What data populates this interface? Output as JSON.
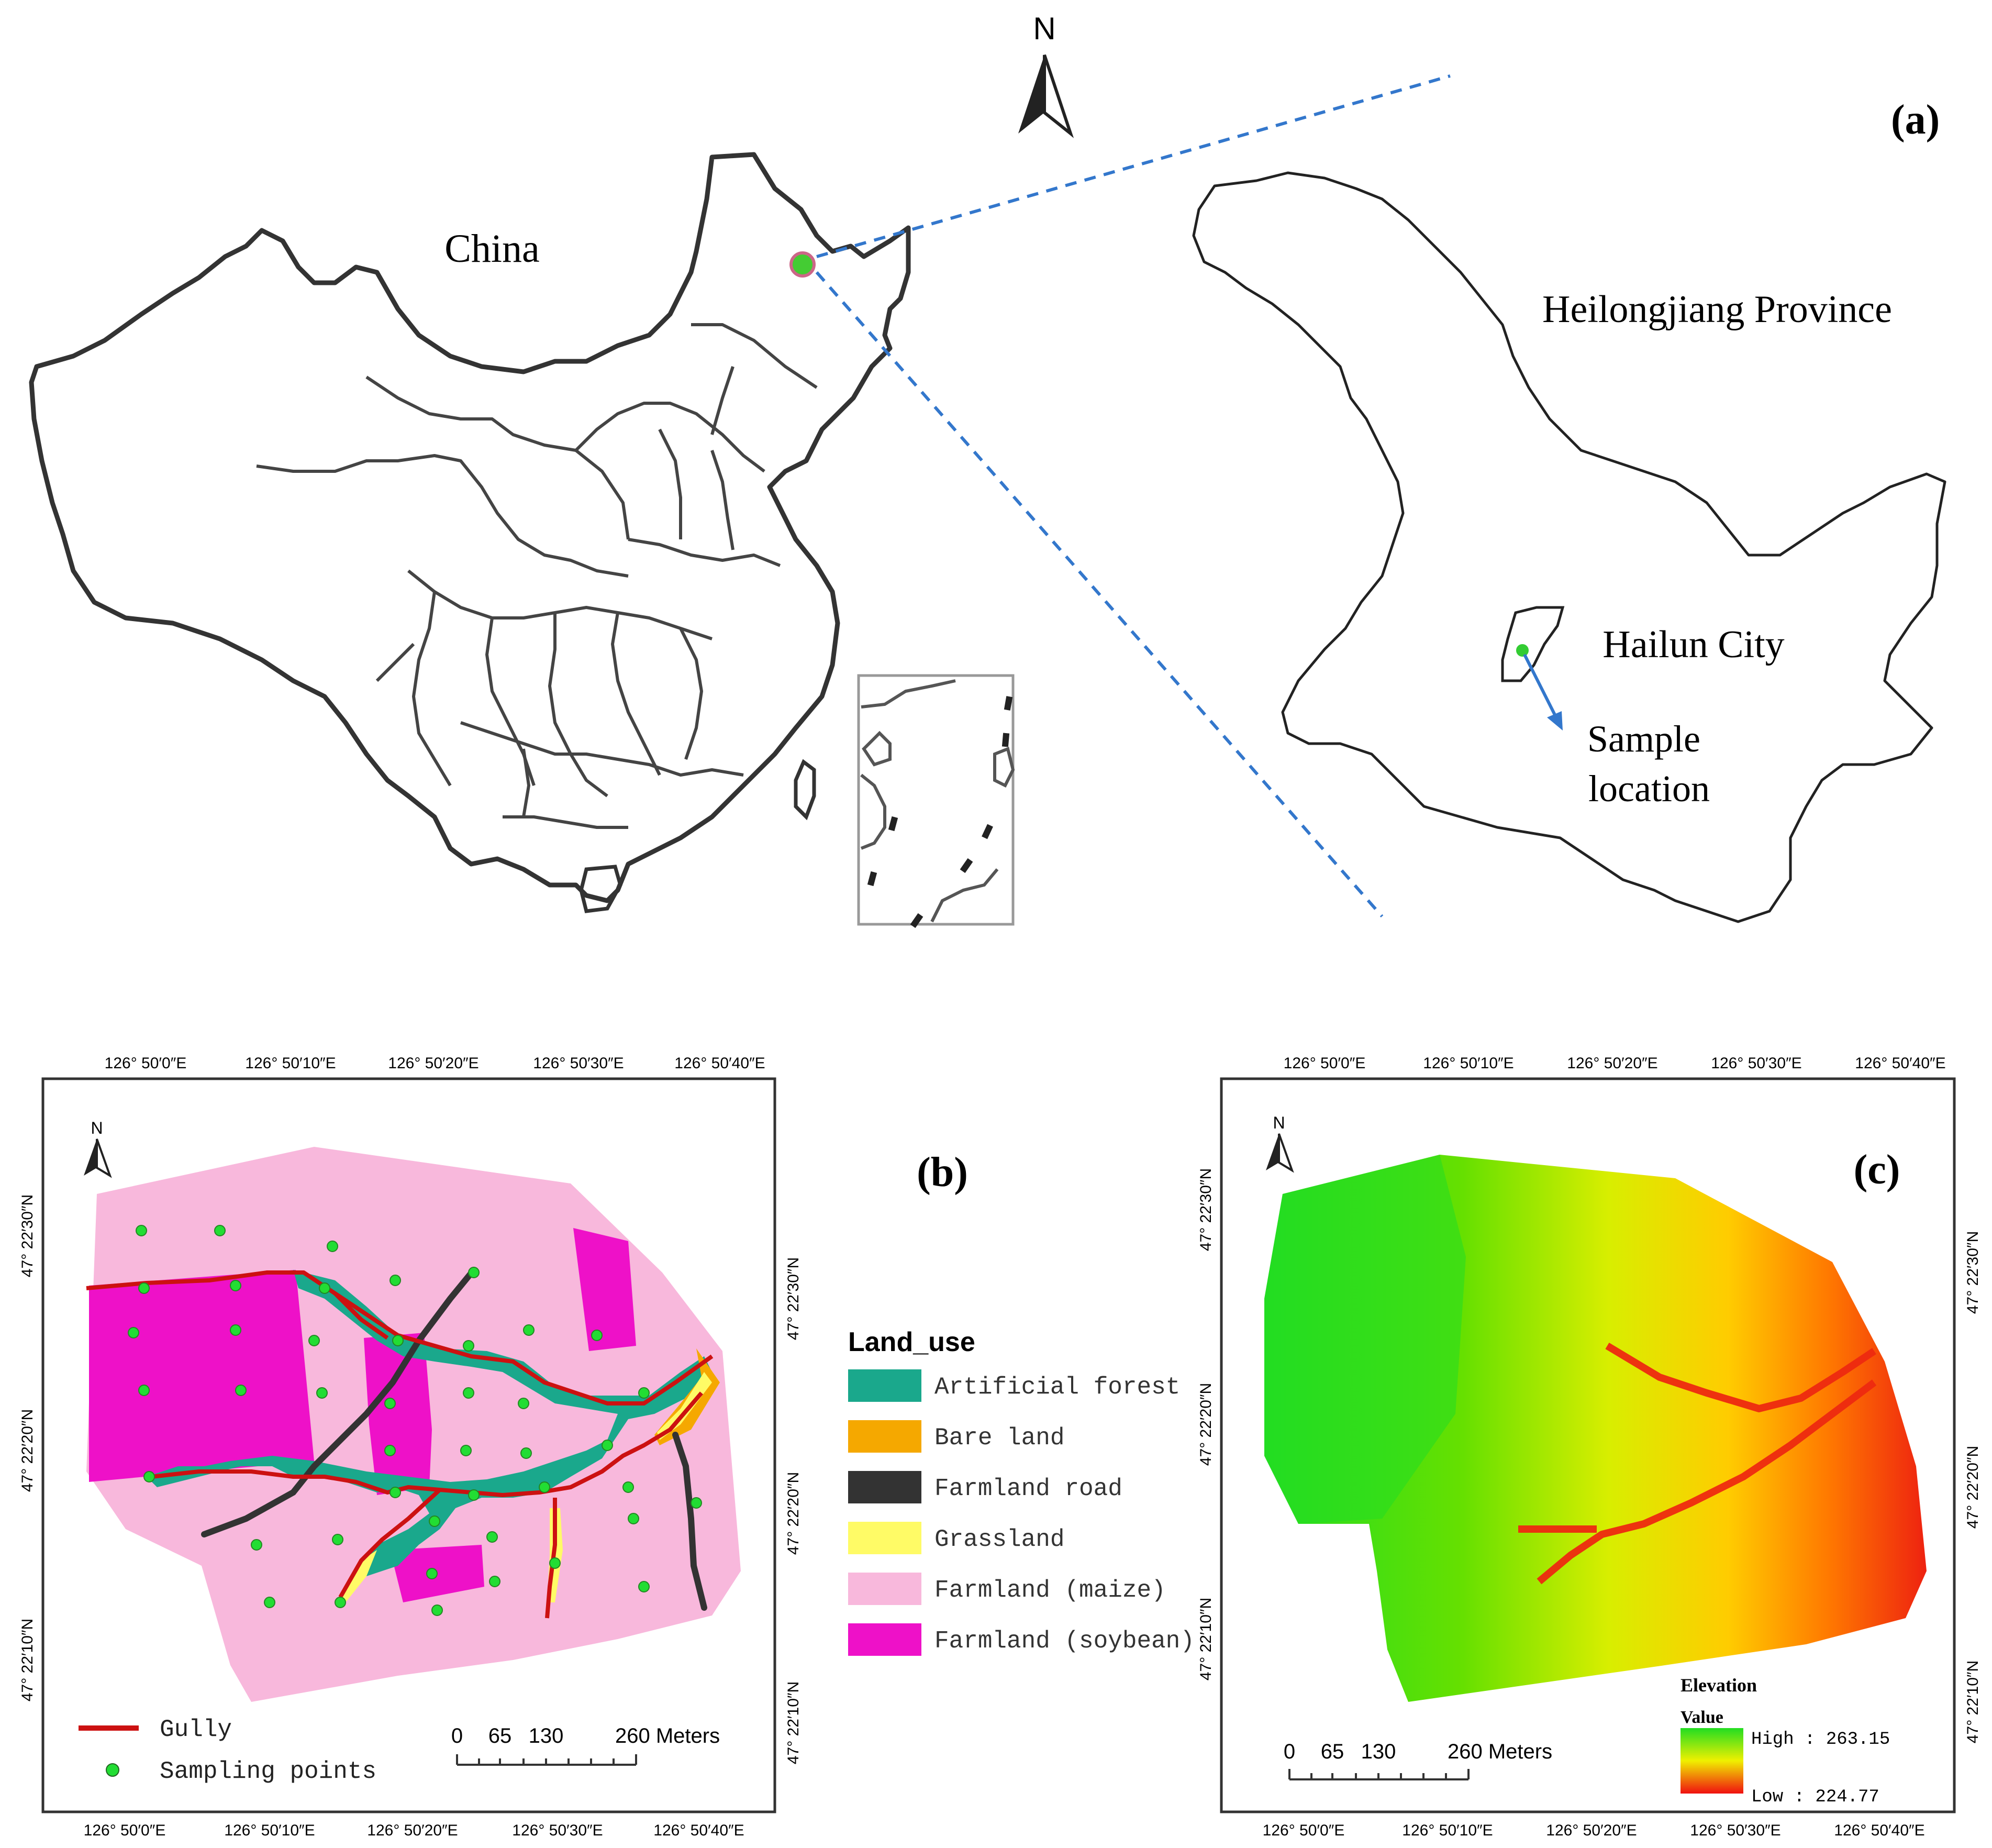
{
  "panel_a": {
    "label": "(a)",
    "north": "N",
    "china_label": "China",
    "province_label": "Heilongjiang Province",
    "city_label": "Hailun City",
    "sample_label_line1": "Sample",
    "sample_label_line2": "location"
  },
  "panel_b": {
    "label": "(b)",
    "north": "N",
    "top_ticks": [
      "126° 50′0″E",
      "126° 50′10″E",
      "126° 50′20″E",
      "126° 50′30″E",
      "126° 50′40″E"
    ],
    "bottom_ticks": [
      "126° 50′0″E",
      "126° 50′10″E",
      "126° 50′20″E",
      "126° 50′30″E",
      "126° 50′40″E"
    ],
    "left_ticks": [
      "47° 22′30″N",
      "47° 22′20″N",
      "47° 22′10″N"
    ],
    "right_ticks": [
      "47° 22′30″N",
      "47° 22′20″N",
      "47° 22′10″N"
    ],
    "legend_gully": "Gully",
    "legend_points": "Sampling points",
    "scale_numbers": [
      "0",
      "65",
      "130",
      "260 Meters"
    ],
    "colors": {
      "maize": "#f8b8dc",
      "soybean": "#ee11c8",
      "forest": "#1aa88c",
      "bare": "#f5a800",
      "grass": "#fffb66",
      "road": "#333333",
      "gully": "#cc1111",
      "point": "#22dd33"
    }
  },
  "land_use": {
    "title": "Land_use",
    "items": [
      {
        "label": "Artificial forest",
        "color": "#1aa88c"
      },
      {
        "label": "Bare land",
        "color": "#f5a800"
      },
      {
        "label": "Farmland road",
        "color": "#333333"
      },
      {
        "label": "Grassland",
        "color": "#fffb66"
      },
      {
        "label": "Farmland (maize)",
        "color": "#f8b8dc"
      },
      {
        "label": "Farmland (soybean)",
        "color": "#ee11c8"
      }
    ]
  },
  "panel_c": {
    "label": "(c)",
    "north": "N",
    "top_ticks": [
      "126° 50′0″E",
      "126° 50′10″E",
      "126° 50′20″E",
      "126° 50′30″E",
      "126° 50′40″E"
    ],
    "bottom_ticks": [
      "126° 50′0″E",
      "126° 50′10″E",
      "126° 50′20″E",
      "126° 50′30″E",
      "126° 50′40″E"
    ],
    "left_ticks": [
      "47° 22′30″N",
      "47° 22′20″N",
      "47° 22′10″N"
    ],
    "right_ticks": [
      "47° 22′30″N",
      "47° 22′20″N",
      "47° 22′10″N"
    ],
    "legend_title": "Elevation",
    "legend_sub": "Value",
    "high_label": "High : 263.15",
    "low_label": "Low : 224.77",
    "scale_numbers": [
      "0",
      "65",
      "130",
      "260 Meters"
    ],
    "colors": {
      "high": "#22dd22",
      "mid": "#f0f000",
      "low": "#f01010"
    }
  }
}
